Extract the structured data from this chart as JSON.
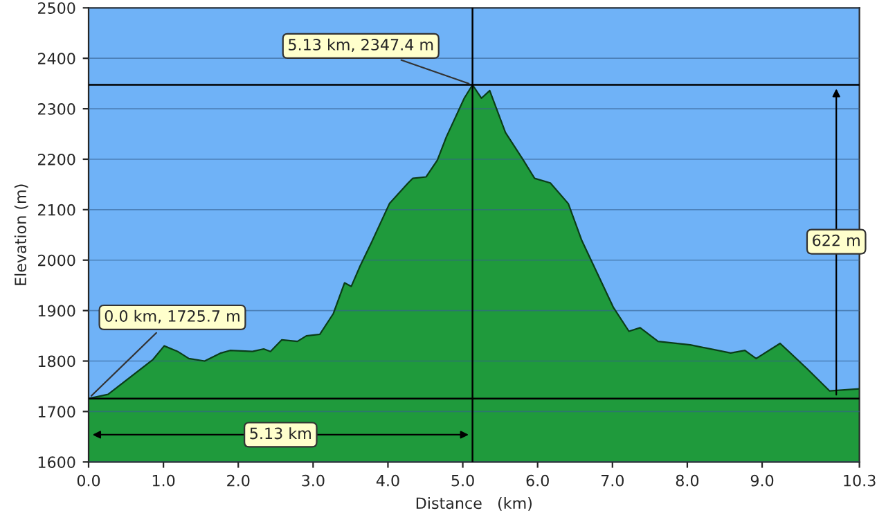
{
  "chart_data": {
    "type": "area",
    "xlabel": "Distance   (km)",
    "ylabel": "Elevation (m)",
    "x": [
      0,
      0.26,
      0.86,
      1.01,
      1.19,
      1.34,
      1.55,
      1.77,
      1.89,
      2.19,
      2.34,
      2.43,
      2.58,
      2.79,
      2.91,
      3.09,
      3.27,
      3.42,
      3.51,
      3.63,
      3.78,
      4.02,
      4.27,
      4.33,
      4.51,
      4.66,
      4.78,
      5.02,
      5.13,
      5.25,
      5.36,
      5.57,
      5.81,
      5.96,
      6.17,
      6.41,
      6.59,
      7.01,
      7.22,
      7.37,
      7.61,
      8.04,
      8.58,
      8.77,
      8.92,
      9.24,
      9.6,
      9.9,
      10.3
    ],
    "series": [
      {
        "color": "#1f9a3c",
        "values": [
          1725.7,
          1734,
          1803,
          1830,
          1819,
          1805,
          1800,
          1816,
          1821,
          1819,
          1824,
          1819,
          1842,
          1839,
          1850,
          1853,
          1894,
          1955,
          1948,
          1989,
          2035,
          2112,
          2153,
          2162,
          2165,
          2198,
          2244,
          2321,
          2347.4,
          2321,
          2336,
          2253,
          2198,
          2162,
          2153,
          2112,
          2039,
          1907,
          1859,
          1866,
          1839,
          1832,
          1816,
          1821,
          1805,
          1835,
          1785,
          1741,
          1745
        ]
      }
    ],
    "xlim": [
      0,
      10.3
    ],
    "ylim": [
      1600,
      2500
    ],
    "xticks": [
      {
        "value": 0,
        "label": "0.0"
      },
      {
        "value": 1,
        "label": "1.0"
      },
      {
        "value": 2,
        "label": "2.0"
      },
      {
        "value": 3,
        "label": "3.0"
      },
      {
        "value": 4,
        "label": "4.0"
      },
      {
        "value": 5,
        "label": "5.0"
      },
      {
        "value": 6,
        "label": "6.0"
      },
      {
        "value": 7,
        "label": "7.0"
      },
      {
        "value": 8,
        "label": "8.0"
      },
      {
        "value": 9,
        "label": "9.0"
      },
      10.3
    ],
    "yticks": [
      1600,
      1700,
      1800,
      1900,
      2000,
      2100,
      2200,
      2300,
      2400,
      2500
    ],
    "grid": "y",
    "ref_lines": [
      {
        "axis": "y",
        "value": 2347.4,
        "color": "#000000"
      },
      {
        "axis": "y",
        "value": 1725.7,
        "color": "#000000"
      },
      {
        "axis": "x",
        "value": 5.13,
        "color": "#000000"
      }
    ],
    "annotations": [
      {
        "text": "5.13 km, 2347.4 m",
        "x": 5.13,
        "y": 2347.4
      },
      {
        "text": "0.0 km, 1725.7 m",
        "x": 0,
        "y": 1725.7
      },
      "5.13 km",
      "622 m"
    ]
  }
}
